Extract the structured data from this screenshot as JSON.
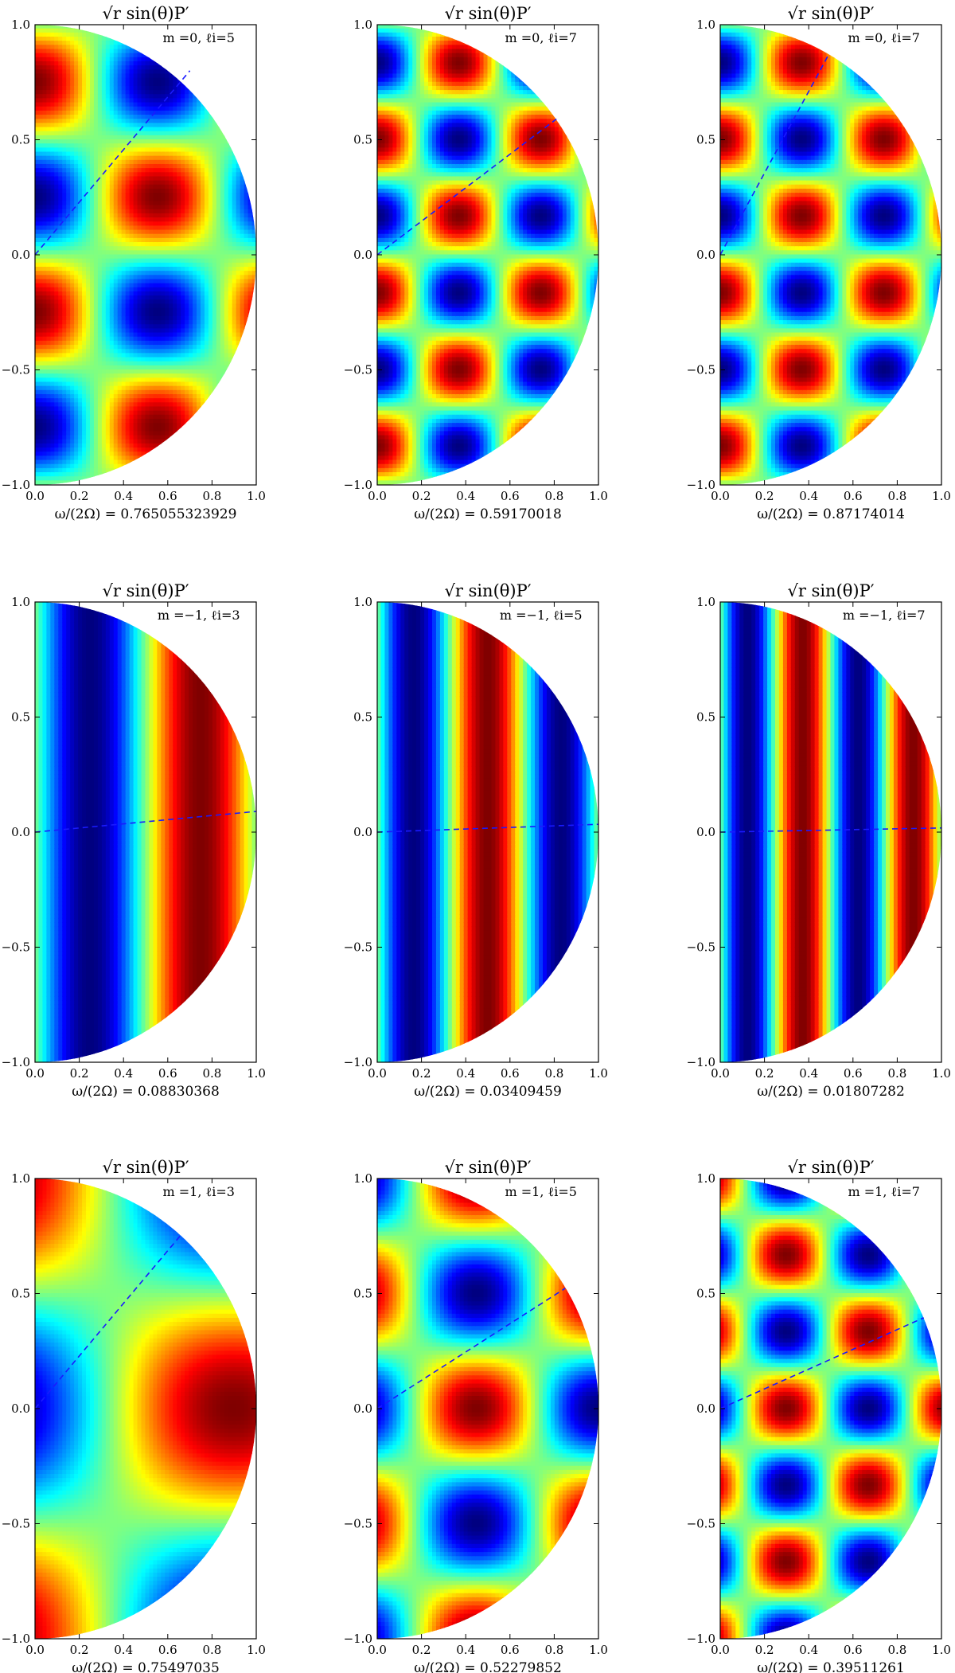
{
  "chart_data": [
    {
      "type": "heatmap",
      "title": "√r sin(θ)P′",
      "annotation": "m =0, ℓi=5",
      "xlabel": "ω/(2Ω) = 0.765055323929",
      "xlim": [
        0,
        1
      ],
      "ylim": [
        -1,
        1
      ],
      "xticks": [
        "0.0",
        "0.2",
        "0.4",
        "0.6",
        "0.8",
        "1.0"
      ],
      "yticks": [
        "1.0",
        "0.5",
        "0.0",
        "−0.5",
        "−1.0"
      ],
      "pattern": {
        "m": 0,
        "ell": 5,
        "q": 0.765
      },
      "dashed_line": {
        "x_end": 0.7,
        "y_end": 0.8
      },
      "colormap": "jet"
    },
    {
      "type": "heatmap",
      "title": "√r sin(θ)P′",
      "annotation": "m =0, ℓi=7",
      "xlabel": "ω/(2Ω) = 0.59170018",
      "xlim": [
        0,
        1
      ],
      "ylim": [
        -1,
        1
      ],
      "xticks": [
        "0.0",
        "0.2",
        "0.4",
        "0.6",
        "0.8",
        "1.0"
      ],
      "yticks": [
        "1.0",
        "0.5",
        "0.0",
        "−0.5",
        "−1.0"
      ],
      "pattern": {
        "m": 0,
        "ell": 7,
        "q": 0.592
      },
      "dashed_line": {
        "x_end": 0.81,
        "y_end": 0.59
      },
      "colormap": "jet"
    },
    {
      "type": "heatmap",
      "title": "√r sin(θ)P′",
      "annotation": "m =0, ℓi=7",
      "xlabel": "ω/(2Ω) = 0.87174014",
      "xlim": [
        0,
        1
      ],
      "ylim": [
        -1,
        1
      ],
      "xticks": [
        "0.0",
        "0.2",
        "0.4",
        "0.6",
        "0.8",
        "1.0"
      ],
      "yticks": [
        "1.0",
        "0.5",
        "0.0",
        "−0.5",
        "−1.0"
      ],
      "pattern": {
        "m": 0,
        "ell": 7,
        "q": 0.872
      },
      "dashed_line": {
        "x_end": 0.49,
        "y_end": 0.87
      },
      "colormap": "jet"
    },
    {
      "type": "heatmap",
      "title": "√r sin(θ)P′",
      "annotation": "m =−1, ℓi=3",
      "xlabel": "ω/(2Ω) = 0.08830368",
      "xlim": [
        0,
        1
      ],
      "ylim": [
        -1,
        1
      ],
      "xticks": [
        "0.0",
        "0.2",
        "0.4",
        "0.6",
        "0.8",
        "1.0"
      ],
      "yticks": [
        "1.0",
        "0.5",
        "0.0",
        "−0.5",
        "−1.0"
      ],
      "pattern": {
        "m": -1,
        "ell": 3,
        "q": 0.088
      },
      "dashed_line": {
        "x_end": 1.0,
        "y_end": 0.09
      },
      "colormap": "jet"
    },
    {
      "type": "heatmap",
      "title": "√r sin(θ)P′",
      "annotation": "m =−1, ℓi=5",
      "xlabel": "ω/(2Ω) = 0.03409459",
      "xlim": [
        0,
        1
      ],
      "ylim": [
        -1,
        1
      ],
      "xticks": [
        "0.0",
        "0.2",
        "0.4",
        "0.6",
        "0.8",
        "1.0"
      ],
      "yticks": [
        "1.0",
        "0.5",
        "0.0",
        "−0.5",
        "−1.0"
      ],
      "pattern": {
        "m": -1,
        "ell": 5,
        "q": 0.034
      },
      "dashed_line": {
        "x_end": 1.0,
        "y_end": 0.034
      },
      "colormap": "jet"
    },
    {
      "type": "heatmap",
      "title": "√r sin(θ)P′",
      "annotation": "m =−1, ℓi=7",
      "xlabel": "ω/(2Ω) = 0.01807282",
      "xlim": [
        0,
        1
      ],
      "ylim": [
        -1,
        1
      ],
      "xticks": [
        "0.0",
        "0.2",
        "0.4",
        "0.6",
        "0.8",
        "1.0"
      ],
      "yticks": [
        "1.0",
        "0.5",
        "0.0",
        "−0.5",
        "−1.0"
      ],
      "pattern": {
        "m": -1,
        "ell": 7,
        "q": 0.018
      },
      "dashed_line": {
        "x_end": 1.0,
        "y_end": 0.018
      },
      "colormap": "jet"
    },
    {
      "type": "heatmap",
      "title": "√r sin(θ)P′",
      "annotation": "m =1, ℓi=3",
      "xlabel": "ω/(2Ω) = 0.75497035",
      "xlim": [
        0,
        1
      ],
      "ylim": [
        -1,
        1
      ],
      "xticks": [
        "0.0",
        "0.2",
        "0.4",
        "0.6",
        "0.8",
        "1.0"
      ],
      "yticks": [
        "1.0",
        "0.5",
        "0.0",
        "−0.5",
        "−1.0"
      ],
      "pattern": {
        "m": 1,
        "ell": 3,
        "q": 0.755
      },
      "dashed_line": {
        "x_end": 0.66,
        "y_end": 0.755
      },
      "colormap": "jet"
    },
    {
      "type": "heatmap",
      "title": "√r sin(θ)P′",
      "annotation": "m =1, ℓi=5",
      "xlabel": "ω/(2Ω) = 0.52279852",
      "xlim": [
        0,
        1
      ],
      "ylim": [
        -1,
        1
      ],
      "xticks": [
        "0.0",
        "0.2",
        "0.4",
        "0.6",
        "0.8",
        "1.0"
      ],
      "yticks": [
        "1.0",
        "0.5",
        "0.0",
        "−0.5",
        "−1.0"
      ],
      "pattern": {
        "m": 1,
        "ell": 5,
        "q": 0.523
      },
      "dashed_line": {
        "x_end": 0.85,
        "y_end": 0.523
      },
      "colormap": "jet"
    },
    {
      "type": "heatmap",
      "title": "√r sin(θ)P′",
      "annotation": "m =1, ℓi=7",
      "xlabel": "ω/(2Ω) = 0.39511261",
      "xlim": [
        0,
        1
      ],
      "ylim": [
        -1,
        1
      ],
      "xticks": [
        "0.0",
        "0.2",
        "0.4",
        "0.6",
        "0.8",
        "1.0"
      ],
      "yticks": [
        "1.0",
        "0.5",
        "0.0",
        "−0.5",
        "−1.0"
      ],
      "pattern": {
        "m": 1,
        "ell": 7,
        "q": 0.395
      },
      "dashed_line": {
        "x_end": 0.92,
        "y_end": 0.395
      },
      "colormap": "jet"
    }
  ]
}
